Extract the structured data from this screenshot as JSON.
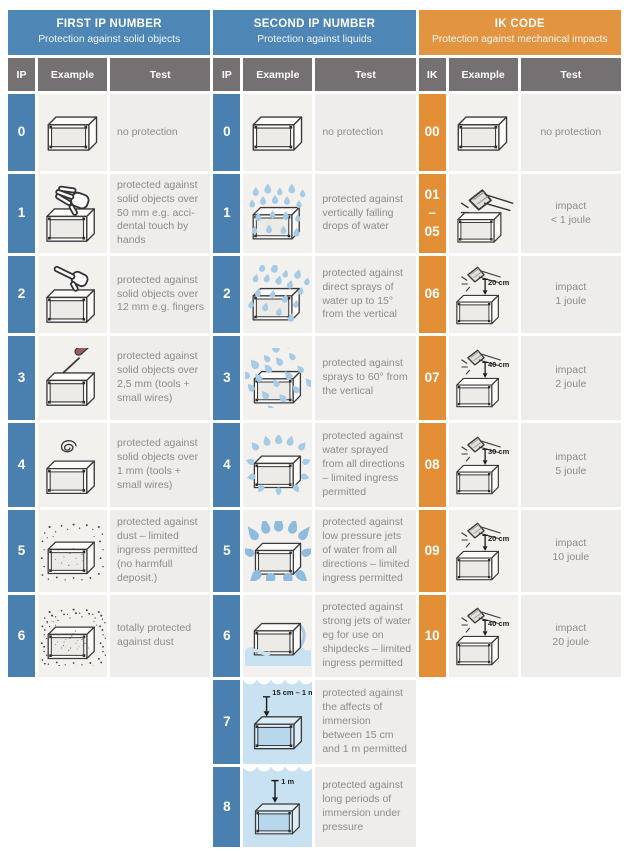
{
  "colors": {
    "blue_header": "#4e86b6",
    "blue_cell": "#4a80b0",
    "orange_header": "#e39440",
    "orange_cell": "#e38f35",
    "subheader_gray": "#757071",
    "example_bg": "#f3f1ee",
    "test_bg": "#efedeb",
    "test_text": "#8c8c8c",
    "water_blue": "#c9e2f1",
    "drop_blue": "#a6cbe7"
  },
  "groups": [
    {
      "title": "FIRST IP NUMBER",
      "subtitle": "Protection against solid objects",
      "theme": "blue",
      "columns": [
        "IP",
        "Example",
        "Test"
      ],
      "rows": [
        {
          "code": "0",
          "icon": "box-plain",
          "test": "no protection"
        },
        {
          "code": "1",
          "icon": "box-hand",
          "test": "protected against solid objects over 50 mm e.g. acci-dental touch by hands"
        },
        {
          "code": "2",
          "icon": "box-finger",
          "test": "protected against solid objects over 12 mm e.g. fingers"
        },
        {
          "code": "3",
          "icon": "box-screwdriver",
          "test": "protected against solid objects over 2,5 mm (tools + small wires)"
        },
        {
          "code": "4",
          "icon": "box-wire",
          "test": "protected against solid objects over 1 mm (tools + small wires)"
        },
        {
          "code": "5",
          "icon": "box-dust-limited",
          "test": "protected against dust – limited ingress permitted (no harmfull deposit.)"
        },
        {
          "code": "6",
          "icon": "box-dust-total",
          "test": "totally protected against dust"
        }
      ]
    },
    {
      "title": "SECOND IP NUMBER",
      "subtitle": "Protection against liquids",
      "theme": "blue",
      "columns": [
        "IP",
        "Example",
        "Test"
      ],
      "rows": [
        {
          "code": "0",
          "icon": "box-plain",
          "test": "no protection"
        },
        {
          "code": "1",
          "icon": "box-drops-vertical",
          "test": "protected against vertically falling drops of water"
        },
        {
          "code": "2",
          "icon": "box-drops-15",
          "test": "protected against direct sprays of water up to 15° from the vertical"
        },
        {
          "code": "3",
          "icon": "box-spray-60",
          "test": "protected against sprays to 60° from the vertical"
        },
        {
          "code": "4",
          "icon": "box-spray-all",
          "test": "protected against water sprayed from all directions – limited ingress permitted"
        },
        {
          "code": "5",
          "icon": "box-jets",
          "test": "protected against low pressure jets of water from all directions – limited ingress permitted"
        },
        {
          "code": "6",
          "icon": "box-strong-jets",
          "test": "protected against strong jets of water eg for use on shipdecks – limited ingress permitted",
          "water": "bottom"
        },
        {
          "code": "7",
          "icon": "box-immersion",
          "icon_label": "15 cm – 1 m",
          "test": "protected against the affects of immersion between 15 cm and 1 m permitted",
          "water": "full"
        },
        {
          "code": "8",
          "icon": "box-immersion-deep",
          "icon_label": "1 m",
          "test": "protected against long periods of immersion under pressure",
          "water": "full"
        }
      ]
    },
    {
      "title": "IK CODE",
      "subtitle": "Protection against mechanical impacts",
      "theme": "orange",
      "columns": [
        "IK",
        "Example",
        "Test"
      ],
      "rows": [
        {
          "code": "00",
          "icon": "box-plain",
          "test": "no protection"
        },
        {
          "code": "01\n–\n05",
          "icon": "box-hammer",
          "test": "impact\n< 1 joule"
        },
        {
          "code": "06",
          "icon": "box-hammer-drop",
          "icon_label": "20 cm",
          "test": "impact\n1 joule"
        },
        {
          "code": "07",
          "icon": "box-hammer-drop",
          "icon_label": "40 cm",
          "test": "impact\n2 joule"
        },
        {
          "code": "08",
          "icon": "box-hammer-drop",
          "icon_label": "30 cm",
          "test": "impact\n5 joule"
        },
        {
          "code": "09",
          "icon": "box-hammer-drop",
          "icon_label": "20 cm",
          "test": "impact\n10 joule"
        },
        {
          "code": "10",
          "icon": "box-hammer-drop",
          "icon_label": "40 cm",
          "test": "impact\n20 joule"
        }
      ]
    }
  ]
}
